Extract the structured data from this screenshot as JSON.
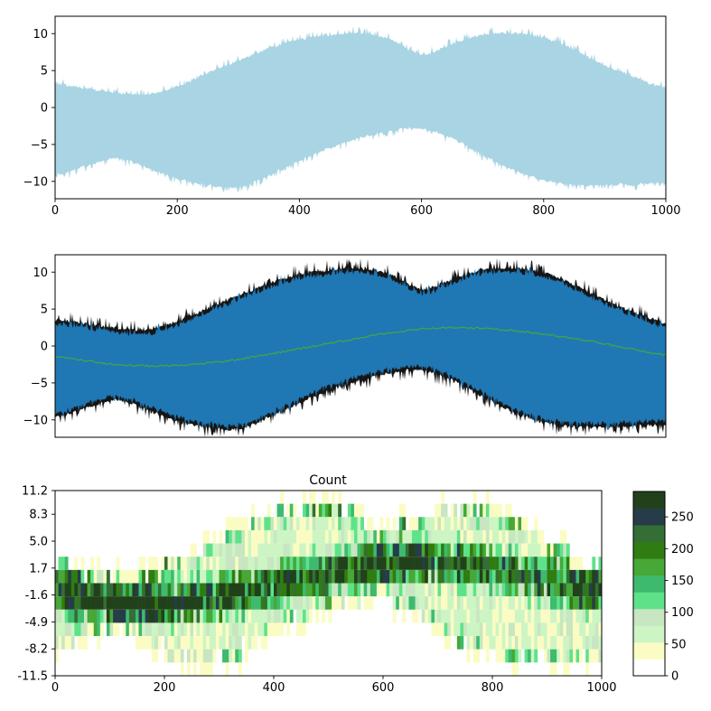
{
  "figure": {
    "background": "#ffffff",
    "spine_color": "#000000"
  },
  "chart_data": [
    {
      "id": "raw_signal",
      "type": "area",
      "description": "dense noisy amplitude-modulated signal, all raw samples",
      "series_color": "#a9d4e3",
      "xlim": [
        0,
        1000
      ],
      "ylim": [
        -12.35,
        12.35
      ],
      "xticks": [
        0,
        200,
        400,
        600,
        800,
        1000
      ],
      "xtick_labels": [
        "0",
        "200",
        "400",
        "600",
        "800",
        "1000"
      ],
      "yticks": [
        10,
        5,
        0,
        -5,
        -10
      ],
      "ytick_labels": [
        "10",
        "5",
        "0",
        "−5",
        "−10"
      ],
      "x": [
        0,
        50,
        100,
        150,
        200,
        250,
        300,
        350,
        400,
        450,
        500,
        550,
        600,
        650,
        700,
        750,
        800,
        850,
        900,
        950,
        1000
      ],
      "upper_envelope": [
        3.2,
        2.6,
        2.0,
        1.8,
        2.9,
        4.7,
        6.4,
        8.0,
        9.3,
        9.8,
        10.1,
        9.2,
        7.3,
        8.6,
        9.9,
        10.1,
        9.5,
        7.9,
        5.8,
        4.1,
        2.7
      ],
      "lower_envelope": [
        -9.2,
        -8.0,
        -6.9,
        -8.2,
        -9.7,
        -10.6,
        -10.8,
        -9.2,
        -7.3,
        -5.5,
        -4.2,
        -3.2,
        -2.9,
        -4.2,
        -6.4,
        -8.5,
        -9.9,
        -10.5,
        -10.5,
        -10.4,
        -10.2
      ]
    },
    {
      "id": "minmax_band_with_mean",
      "type": "area+line",
      "description": "min/max envelope band (blue) with extreme samples (black) and running mean (green)",
      "band_color": "#1f77b4",
      "extremes_color": "#151515",
      "mean_color": "#3fa34d",
      "xlim": [
        0,
        1000
      ],
      "ylim": [
        -12.35,
        12.35
      ],
      "xticks": [
        0,
        200,
        400,
        600,
        800,
        1000
      ],
      "xtick_labels": [],
      "yticks": [
        10,
        5,
        0,
        -5,
        -10
      ],
      "ytick_labels": [
        "10",
        "5",
        "0",
        "−5",
        "−10"
      ],
      "x": [
        0,
        50,
        100,
        150,
        200,
        250,
        300,
        350,
        400,
        450,
        500,
        550,
        600,
        650,
        700,
        750,
        800,
        850,
        900,
        950,
        1000
      ],
      "upper_envelope": [
        3.2,
        2.6,
        2.0,
        1.8,
        2.9,
        4.7,
        6.4,
        8.0,
        9.3,
        9.8,
        10.1,
        9.2,
        7.3,
        8.6,
        9.9,
        10.1,
        9.5,
        7.9,
        5.8,
        4.1,
        2.7
      ],
      "lower_envelope": [
        -9.2,
        -8.0,
        -6.9,
        -8.2,
        -9.7,
        -10.6,
        -10.8,
        -9.2,
        -7.3,
        -5.5,
        -4.2,
        -3.2,
        -2.9,
        -4.2,
        -6.4,
        -8.5,
        -9.9,
        -10.5,
        -10.5,
        -10.4,
        -10.2
      ],
      "mean": [
        -1.4,
        -2.0,
        -2.5,
        -2.7,
        -2.6,
        -2.3,
        -1.8,
        -1.1,
        -0.4,
        0.4,
        1.1,
        1.8,
        2.3,
        2.5,
        2.4,
        2.1,
        1.6,
        1.0,
        0.3,
        -0.5,
        -1.2
      ]
    },
    {
      "id": "count_histogram",
      "type": "heatmap",
      "title": "Count",
      "description": "2D histogram of sample counts per (x, value) bin; high counts follow the mean curve",
      "xlim": [
        0,
        1000
      ],
      "ylim": [
        -11.5,
        11.2
      ],
      "rows": 14,
      "cols": 170,
      "xticks": [
        0,
        200,
        400,
        600,
        800,
        1000
      ],
      "xtick_labels": [
        "0",
        "200",
        "400",
        "600",
        "800",
        "1000"
      ],
      "ytick_values": [
        11.2,
        8.3,
        5.0,
        1.7,
        -1.6,
        -4.9,
        -8.2,
        -11.5
      ],
      "ytick_labels": [
        "11.2",
        "8.3",
        "5.0",
        "1.7",
        "-1.6",
        "-4.9",
        "-8.2",
        "-11.5"
      ],
      "x": [
        0,
        50,
        100,
        150,
        200,
        250,
        300,
        350,
        400,
        450,
        500,
        550,
        600,
        650,
        700,
        750,
        800,
        850,
        900,
        950,
        1000
      ],
      "mean": [
        -1.4,
        -2.0,
        -2.5,
        -2.7,
        -2.6,
        -2.3,
        -1.8,
        -1.1,
        -0.4,
        0.4,
        1.1,
        1.8,
        2.3,
        2.5,
        2.4,
        2.1,
        1.6,
        1.0,
        0.3,
        -0.5,
        -1.2
      ],
      "upper_envelope": [
        3.2,
        2.6,
        2.0,
        1.8,
        2.9,
        4.7,
        6.4,
        8.0,
        9.3,
        9.8,
        10.1,
        9.2,
        7.3,
        8.6,
        9.9,
        10.1,
        9.5,
        7.9,
        5.8,
        4.1,
        2.7
      ],
      "lower_envelope": [
        -9.2,
        -8.0,
        -6.9,
        -8.2,
        -9.7,
        -10.6,
        -10.8,
        -9.2,
        -7.3,
        -5.5,
        -4.2,
        -3.2,
        -2.9,
        -4.2,
        -6.4,
        -8.5,
        -9.9,
        -10.5,
        -10.5,
        -10.4,
        -10.2
      ],
      "density_model": {
        "peak_scale": 620,
        "peak_sigma": 1.5,
        "base": 58,
        "upper_edge_bump": 75,
        "lower_edge_bump": 50,
        "fringe": 1.3
      },
      "colorbar": {
        "vmin": 0,
        "vmax": 290,
        "ticks": [
          0,
          50,
          100,
          150,
          200,
          250
        ],
        "tick_labels": [
          "0",
          "50",
          "100",
          "150",
          "200",
          "250"
        ],
        "palette": [
          "#ffffff",
          "#fbfcc3",
          "#cdf5c4",
          "#c7e6c1",
          "#5ee289",
          "#3eba6e",
          "#47a737",
          "#2f7d11",
          "#346e35",
          "#273c49",
          "#21411b"
        ]
      }
    }
  ]
}
